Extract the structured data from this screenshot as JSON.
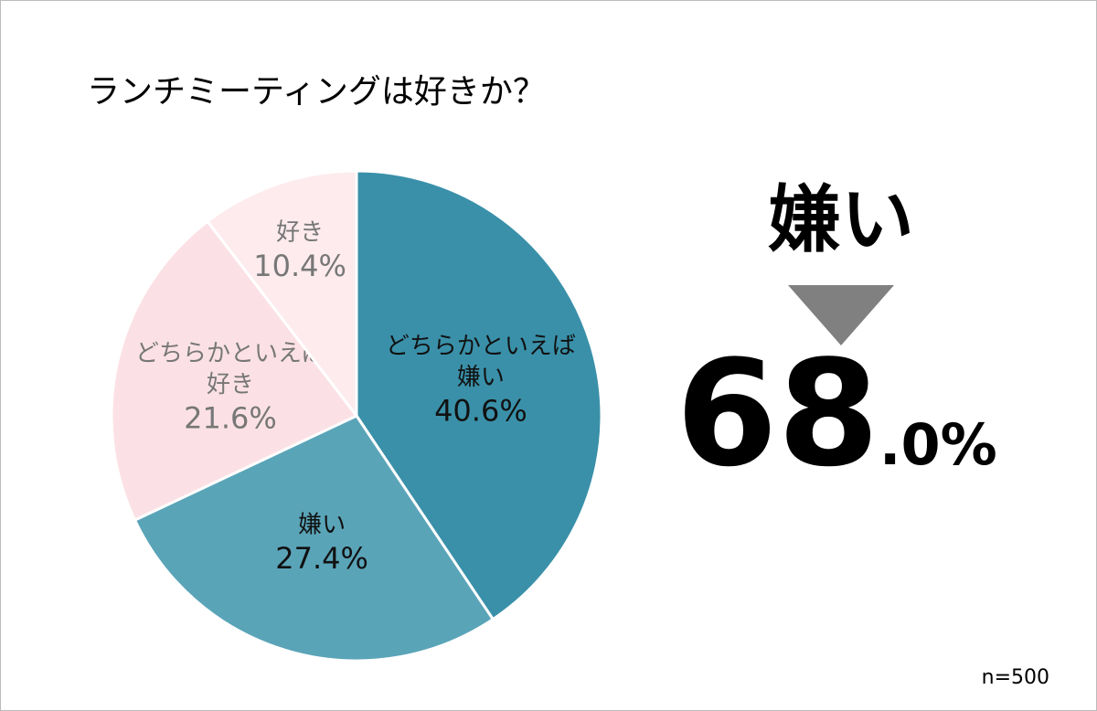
{
  "chart_data": {
    "type": "pie",
    "title": "ランチミーティングは好きか？",
    "categories": [
      "どちらかといえば\n嫌い",
      "嫌い",
      "どちらかといえば\n好き",
      "好き"
    ],
    "values": [
      40.6,
      27.4,
      21.6,
      10.4
    ],
    "value_labels": [
      "40.6%",
      "27.4%",
      "21.6%",
      "10.4%"
    ],
    "colors": [
      "#3a90a9",
      "#5aa4b8",
      "#fbe1e5",
      "#fdebee"
    ],
    "callout": {
      "label": "嫌い",
      "value": 68.0,
      "value_label": "68.0%"
    },
    "note": "n=500"
  }
}
